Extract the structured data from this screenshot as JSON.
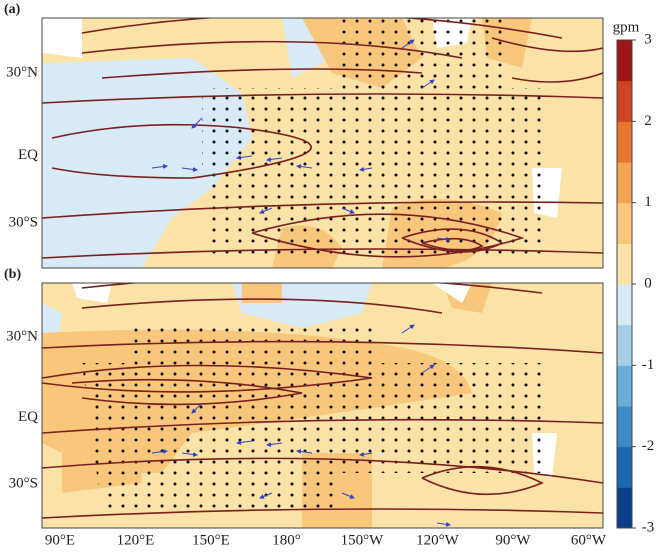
{
  "panels": [
    {
      "label": "(a)",
      "lat_labels": [
        "30°N",
        "EQ",
        "30°S"
      ]
    },
    {
      "label": "(b)",
      "lat_labels": [
        "30°N",
        "EQ",
        "30°S"
      ]
    }
  ],
  "lon_labels": [
    "90°E",
    "120°E",
    "150°E",
    "180°",
    "150°W",
    "120°W",
    "90°W",
    "60°W"
  ],
  "colorbar": {
    "label": "gpm",
    "lim": [
      -3,
      3
    ],
    "ticks": [
      3,
      2,
      1,
      0,
      -1,
      -2,
      -3
    ],
    "colors": [
      "#0b3f8c",
      "#1f66b1",
      "#3d8ac7",
      "#6aaed8",
      "#a3cfe8",
      "#d7eaf5",
      "#fbe3a8",
      "#f8c77c",
      "#f3a351",
      "#e6762f",
      "#cc4423",
      "#9e1616"
    ]
  }
}
